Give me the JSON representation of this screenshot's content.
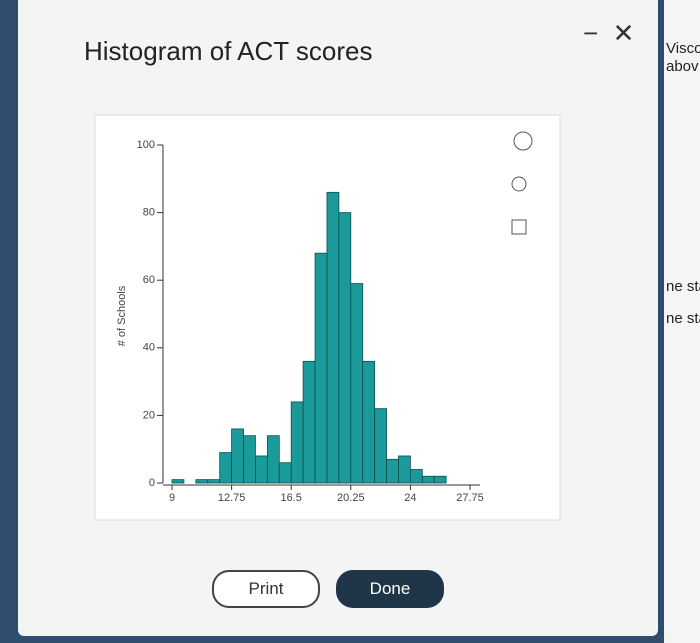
{
  "chart_data": {
    "type": "histogram",
    "title": "Histogram of ACT scores",
    "y_label": "# of Schools",
    "bins": [
      9,
      9.75,
      10.5,
      11.25,
      12,
      12.75,
      13.5,
      14.25,
      15,
      15.75,
      16.5,
      17.25,
      18,
      18.75,
      19.5,
      20.25,
      21,
      21.75,
      22.5,
      23.25,
      24,
      24.75,
      25.5,
      26.25,
      27,
      27.75
    ],
    "values": [
      1,
      0,
      1,
      1,
      9,
      16,
      14,
      8,
      14,
      6,
      24,
      36,
      68,
      86,
      80,
      59,
      36,
      22,
      7,
      8,
      4,
      2,
      2,
      0,
      0
    ],
    "color": "#1a9a9a",
    "xlim": [
      9,
      27.75
    ],
    "xticks": [
      9,
      12.75,
      16.5,
      20.25,
      24,
      27.75
    ],
    "ylim": [
      0,
      100
    ],
    "yticks": [
      0,
      20,
      40,
      60,
      80,
      100
    ],
    "grid": false
  },
  "buttons": {
    "print": "Print",
    "done": "Done"
  },
  "side_texts": [
    "Visco",
    "abov",
    "ne stand",
    "ne stand"
  ]
}
